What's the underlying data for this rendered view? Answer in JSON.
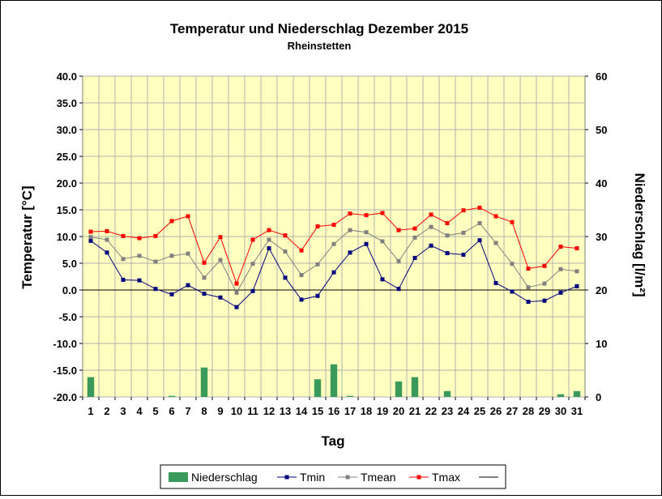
{
  "chart_data": {
    "type": "bar+line",
    "title": "Temperatur und Niederschlag Dezember 2015",
    "subtitle": "Rheinstetten",
    "xlabel": "Tag",
    "ylabel_left": "Temperatur [°C]",
    "ylabel_right": "Niederschlag [l/m²]",
    "x": [
      "1",
      "2",
      "3",
      "4",
      "5",
      "6",
      "7",
      "8",
      "9",
      "10",
      "11",
      "12",
      "13",
      "14",
      "15",
      "16",
      "17",
      "18",
      "19",
      "20",
      "21",
      "22",
      "23",
      "24",
      "25",
      "26",
      "27",
      "28",
      "29",
      "30",
      "31"
    ],
    "ylim_left": [
      -20,
      40
    ],
    "yticks_left": [
      "40.0",
      "35.0",
      "30.0",
      "25.0",
      "20.0",
      "15.0",
      "10.0",
      "5.0",
      "0.0",
      "-5.0",
      "-10.0",
      "-15.0",
      "-20.0"
    ],
    "ylim_right": [
      0,
      60
    ],
    "yticks_right": [
      "60",
      "50",
      "40",
      "30",
      "20",
      "10",
      "0"
    ],
    "grid": true,
    "legend_position": "bottom",
    "series": [
      {
        "name": "Niederschlag",
        "type": "bar",
        "axis": "right",
        "color": "#3a9a5c",
        "values": [
          3.7,
          0,
          0,
          0,
          0,
          0.2,
          0,
          5.5,
          0,
          0,
          0,
          0,
          0,
          0,
          3.3,
          6.1,
          0.2,
          0,
          0,
          2.9,
          3.7,
          0,
          1.1,
          0,
          0,
          0,
          0,
          0,
          0,
          0.5,
          1.1
        ]
      },
      {
        "name": "Tmin",
        "type": "line",
        "axis": "left",
        "color": "#00007f",
        "values": [
          9.2,
          7.0,
          1.9,
          1.8,
          0.2,
          -0.8,
          0.9,
          -0.7,
          -1.4,
          -3.2,
          -0.2,
          7.8,
          2.3,
          -1.8,
          -1.1,
          3.3,
          7.0,
          8.6,
          2.0,
          0.2,
          6.0,
          8.3,
          6.9,
          6.6,
          9.3,
          1.3,
          -0.3,
          -2.2,
          -2.0,
          -0.5,
          0.7
        ]
      },
      {
        "name": "Tmean",
        "type": "line",
        "axis": "left",
        "color": "#808080",
        "values": [
          9.9,
          9.4,
          5.8,
          6.4,
          5.3,
          6.4,
          6.8,
          2.3,
          5.6,
          -0.5,
          4.9,
          9.4,
          7.2,
          2.8,
          4.8,
          8.6,
          11.2,
          10.8,
          9.1,
          5.4,
          9.8,
          11.8,
          10.2,
          10.7,
          12.5,
          8.8,
          4.9,
          0.5,
          1.2,
          3.9,
          3.5
        ]
      },
      {
        "name": "Tmax",
        "type": "line",
        "axis": "left",
        "color": "#ff0000",
        "values": [
          10.9,
          11.0,
          10.1,
          9.7,
          10.1,
          12.9,
          13.8,
          5.1,
          9.9,
          1.2,
          9.4,
          11.2,
          10.2,
          7.4,
          11.9,
          12.2,
          14.3,
          14.0,
          14.4,
          11.2,
          11.5,
          14.1,
          12.5,
          14.9,
          15.4,
          13.8,
          12.7,
          4.0,
          4.5,
          8.1,
          7.8
        ]
      }
    ],
    "legend": [
      {
        "label": "Niederschlag",
        "kind": "bar",
        "color": "#3a9a5c"
      },
      {
        "label": "Tmin",
        "kind": "line-marker",
        "color": "#00007f"
      },
      {
        "label": "Tmean",
        "kind": "line-marker",
        "color": "#808080"
      },
      {
        "label": "Tmax",
        "kind": "line-marker",
        "color": "#ff0000"
      },
      {
        "label": "",
        "kind": "line",
        "color": "#000000"
      }
    ],
    "colors": {
      "plot_background": "#ffffc0",
      "grid": "#b0b0b0"
    }
  }
}
